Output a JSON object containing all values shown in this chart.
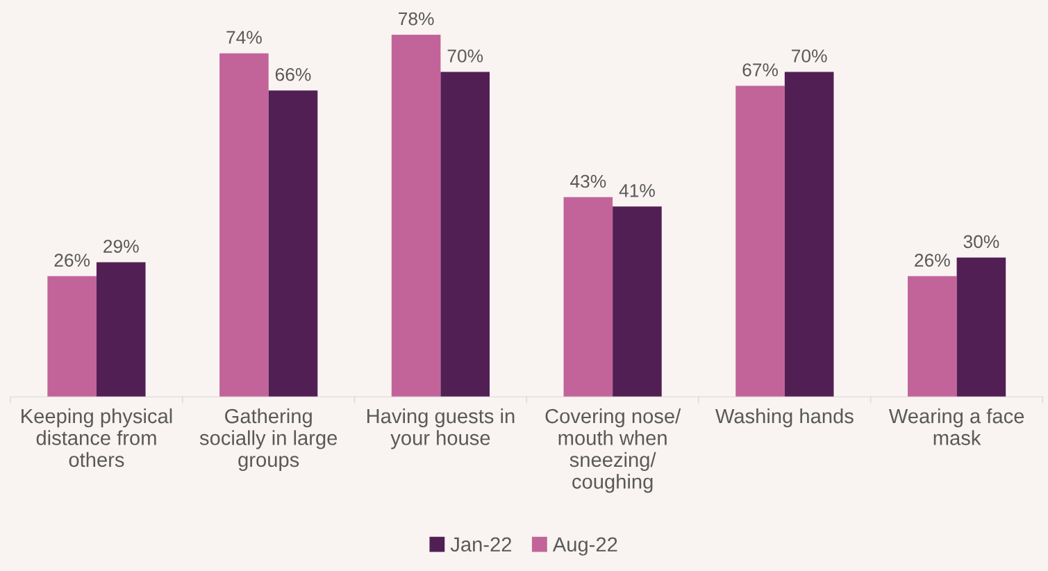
{
  "chart_data": {
    "type": "bar",
    "categories": [
      "Keeping physical distance from others",
      "Gathering socially in large groups",
      "Having guests in your house",
      "Covering nose/ mouth when sneezing/ coughing",
      "Washing hands",
      "Wearing a face mask"
    ],
    "series": [
      {
        "name": "Aug-22",
        "color": "#c2649a",
        "values": [
          26,
          74,
          78,
          43,
          67,
          26
        ],
        "value_labels": [
          "26%",
          "74%",
          "78%",
          "43%",
          "67%",
          "26%"
        ]
      },
      {
        "name": "Jan-22",
        "color": "#521f55",
        "values": [
          29,
          66,
          70,
          41,
          70,
          30
        ],
        "value_labels": [
          "29%",
          "66%",
          "70%",
          "41%",
          "70%",
          "30%"
        ]
      }
    ],
    "legend": "bottom",
    "grid": false
  }
}
